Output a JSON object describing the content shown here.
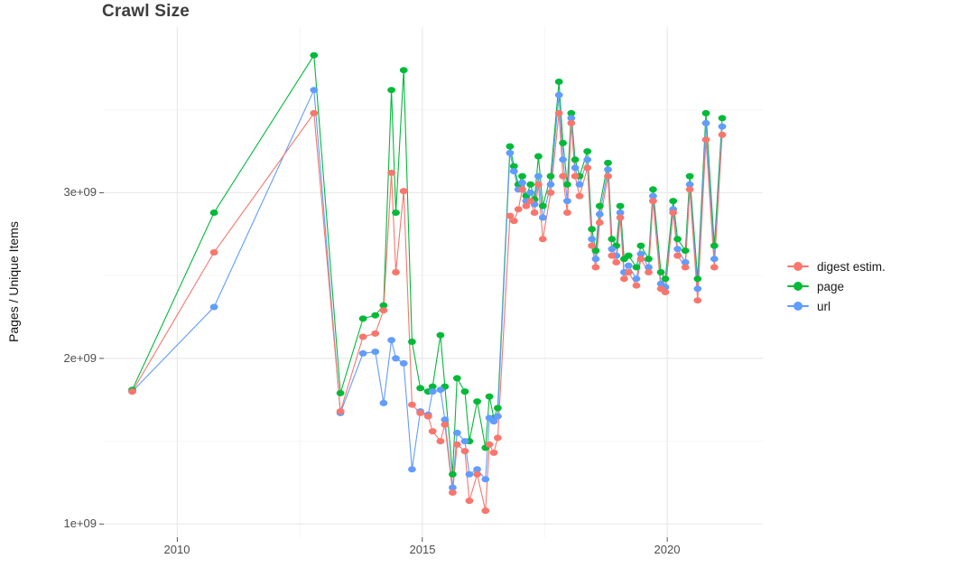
{
  "page": {
    "title": "Crawl Size"
  },
  "axes": {
    "y_label": "Pages / Unique Items",
    "y_ticks": [
      "1e+09",
      "2e+09",
      "3e+09"
    ],
    "x_ticks": [
      "2010",
      "2015",
      "2020"
    ]
  },
  "legend": {
    "items": [
      {
        "label": "digest estim.",
        "color": "#F8766D",
        "icon": "dot",
        "series_key": "digest"
      },
      {
        "label": "page",
        "color": "#00BA38",
        "icon": "dot",
        "series_key": "page"
      },
      {
        "label": "url",
        "color": "#619CFF",
        "icon": "dot",
        "series_key": "url"
      }
    ]
  },
  "chart_data": {
    "type": "line",
    "title": "Crawl Size",
    "xlabel": "",
    "ylabel": "Pages / Unique Items",
    "unit": "values in billions (1e9) of pages / unique items",
    "xlim": [
      2008.5,
      2021.95
    ],
    "ylim": [
      0.92,
      4.0
    ],
    "x_tick_values": [
      2010,
      2015,
      2020
    ],
    "y_tick_values_billions": [
      1,
      2,
      3
    ],
    "y_tick_labels": [
      "1e+09",
      "2e+09",
      "3e+09"
    ],
    "x_major_gridlines": [
      2010,
      2015,
      2020
    ],
    "x_minor_gridlines": [
      2012.5,
      2017.5
    ],
    "y_major_gridlines": [
      1,
      2,
      3
    ],
    "y_minor_gridlines": [
      1.5,
      2.5,
      3.5
    ],
    "grid": "on",
    "legend_position": "right",
    "x": [
      2009.08,
      2010.75,
      2012.79,
      2013.33,
      2013.79,
      2014.04,
      2014.21,
      2014.37,
      2014.46,
      2014.62,
      2014.79,
      2014.96,
      2015.12,
      2015.21,
      2015.37,
      2015.46,
      2015.62,
      2015.71,
      2015.87,
      2015.96,
      2016.12,
      2016.29,
      2016.37,
      2016.46,
      2016.54,
      2016.79,
      2016.87,
      2016.96,
      2017.04,
      2017.12,
      2017.21,
      2017.29,
      2017.37,
      2017.46,
      2017.62,
      2017.79,
      2017.87,
      2017.96,
      2018.04,
      2018.12,
      2018.21,
      2018.37,
      2018.46,
      2018.54,
      2018.62,
      2018.79,
      2018.87,
      2018.96,
      2019.04,
      2019.12,
      2019.21,
      2019.37,
      2019.46,
      2019.62,
      2019.71,
      2019.87,
      2019.96,
      2020.12,
      2020.21,
      2020.37,
      2020.46,
      2020.62,
      2020.79,
      2020.96,
      2021.12
    ],
    "series": [
      {
        "name": "digest estim.",
        "key": "digest",
        "color": "#F8766D",
        "values": [
          1.8,
          2.64,
          3.48,
          1.68,
          2.13,
          2.15,
          2.29,
          3.12,
          2.52,
          3.01,
          1.72,
          1.67,
          1.65,
          1.56,
          1.5,
          1.6,
          1.19,
          1.48,
          1.44,
          1.14,
          1.3,
          1.08,
          1.48,
          1.43,
          1.52,
          2.86,
          2.83,
          2.9,
          3.02,
          2.92,
          2.95,
          2.88,
          3.05,
          2.72,
          3.0,
          3.48,
          3.1,
          2.88,
          3.42,
          3.1,
          2.98,
          3.15,
          2.68,
          2.55,
          2.82,
          3.1,
          2.62,
          2.58,
          2.85,
          2.48,
          2.52,
          2.44,
          2.6,
          2.52,
          2.95,
          2.42,
          2.4,
          2.88,
          2.62,
          2.55,
          3.02,
          2.35,
          3.32,
          2.55,
          3.35
        ]
      },
      {
        "name": "page",
        "key": "page",
        "color": "#00BA38",
        "values": [
          1.81,
          2.88,
          3.83,
          1.79,
          2.24,
          2.26,
          2.32,
          3.62,
          2.88,
          3.74,
          2.1,
          1.82,
          1.8,
          1.83,
          2.14,
          1.83,
          1.3,
          1.88,
          1.8,
          1.5,
          1.74,
          1.46,
          1.77,
          1.64,
          1.7,
          3.28,
          3.16,
          3.05,
          3.1,
          2.98,
          3.05,
          2.96,
          3.22,
          2.92,
          3.1,
          3.67,
          3.3,
          3.05,
          3.48,
          3.2,
          3.1,
          3.25,
          2.78,
          2.65,
          2.92,
          3.18,
          2.72,
          2.68,
          2.92,
          2.6,
          2.62,
          2.55,
          2.68,
          2.6,
          3.02,
          2.52,
          2.48,
          2.95,
          2.72,
          2.65,
          3.1,
          2.48,
          3.48,
          2.68,
          3.45
        ]
      },
      {
        "name": "url",
        "key": "url",
        "color": "#619CFF",
        "values": [
          1.8,
          2.31,
          3.62,
          1.67,
          2.03,
          2.04,
          1.73,
          2.11,
          2.0,
          1.97,
          1.33,
          1.68,
          1.66,
          1.8,
          1.81,
          1.63,
          1.22,
          1.55,
          1.5,
          1.3,
          1.33,
          1.27,
          1.64,
          1.62,
          1.65,
          3.24,
          3.13,
          3.02,
          3.06,
          2.95,
          3.0,
          2.93,
          3.1,
          2.85,
          3.05,
          3.59,
          3.2,
          2.95,
          3.45,
          3.15,
          3.05,
          3.2,
          2.72,
          2.6,
          2.87,
          3.14,
          2.66,
          2.62,
          2.88,
          2.52,
          2.56,
          2.48,
          2.63,
          2.55,
          2.98,
          2.45,
          2.43,
          2.9,
          2.66,
          2.58,
          3.05,
          2.42,
          3.42,
          2.6,
          3.4
        ]
      }
    ]
  }
}
